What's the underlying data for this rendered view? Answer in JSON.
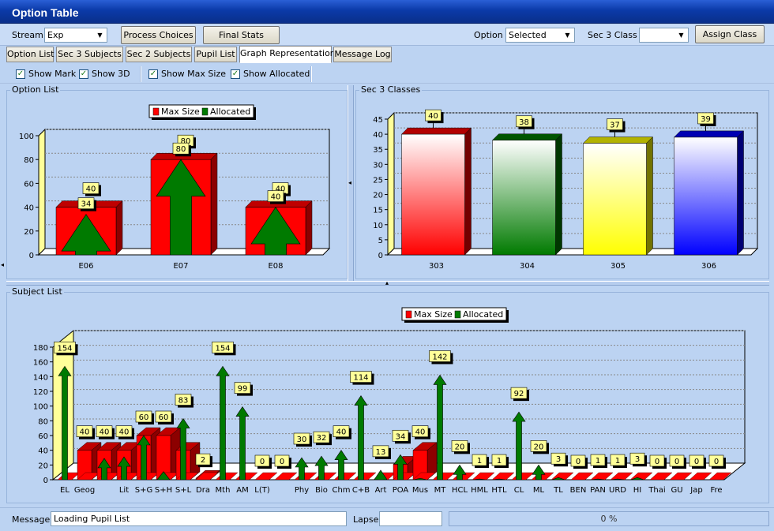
{
  "window": {
    "title": "Option Table"
  },
  "toolbar": {
    "stream_label": "Stream",
    "stream_value": "Exp",
    "process_choices": "Process Choices",
    "final_stats": "Final Stats",
    "option_label": "Option",
    "option_value": "Selected",
    "sec3class_label": "Sec 3 Class",
    "sec3class_value": "",
    "assign_class": "Assign Class"
  },
  "tabs": [
    {
      "label": "Option List"
    },
    {
      "label": "Sec 3 Subjects"
    },
    {
      "label": "Sec 2 Subjects"
    },
    {
      "label": "Pupil List"
    },
    {
      "label": "Graph Representation"
    },
    {
      "label": "Message Log"
    }
  ],
  "checkboxes": [
    {
      "label": "Show Mark",
      "checked": true
    },
    {
      "label": "Show 3D",
      "checked": true
    },
    {
      "label": "Show Max Size",
      "checked": true
    },
    {
      "label": "Show Allocated",
      "checked": true
    }
  ],
  "panels": {
    "option_list": "Option List",
    "sec3_classes": "Sec 3 Classes",
    "subject_list": "Subject List"
  },
  "legend": {
    "max_size": "Max Size",
    "allocated": "Allocated"
  },
  "colors": {
    "max_size": "#ff0000",
    "allocated": "#007a00",
    "label_bg": "#ffff99",
    "wall": "#ffff99"
  },
  "icons": {
    "check": "check-mark-icon",
    "dropdown": "chevron-down-icon",
    "split_left": "chevron-left-icon",
    "split_up": "chevron-up-icon"
  },
  "chart_data": [
    {
      "type": "bar",
      "categories": [
        "E06",
        "E07",
        "E08"
      ],
      "series": [
        {
          "name": "Max Size",
          "values": [
            40,
            80,
            40
          ]
        },
        {
          "name": "Allocated",
          "values": [
            34,
            80,
            40
          ]
        }
      ],
      "title": "",
      "xlabel": "",
      "ylabel": "",
      "ylim": [
        0,
        100
      ],
      "yticks": [
        0,
        20,
        40,
        60,
        80,
        100
      ],
      "grid": true,
      "legend_placement": "top"
    },
    {
      "type": "bar",
      "categories": [
        "303",
        "304",
        "305",
        "306"
      ],
      "values": [
        40,
        38,
        37,
        39
      ],
      "colors": [
        "#ff0000",
        "#007a00",
        "#ffff00",
        "#0000ff"
      ],
      "title": "",
      "ylim": [
        0,
        45
      ],
      "yticks": [
        0,
        5,
        10,
        15,
        20,
        25,
        30,
        35,
        40,
        45
      ],
      "grid": true
    },
    {
      "type": "bar",
      "categories": [
        "EL",
        "Geog",
        "",
        "Lit",
        "S+G",
        "S+H",
        "S+L",
        "Dra",
        "Mth",
        "AM",
        "L(T)",
        "",
        "Phy",
        "Bio",
        "Chm",
        "C+B",
        "Art",
        "POA",
        "Mus",
        "MT",
        "HCL",
        "HML",
        "HTL",
        "CL",
        "ML",
        "TL",
        "BEN",
        "PAN",
        "URD",
        "HI",
        "Thai",
        "GU",
        "Jap",
        "Fre"
      ],
      "series": [
        {
          "name": "Max Size",
          "values": [
            0,
            40,
            40,
            40,
            60,
            60,
            40,
            2,
            0,
            0,
            0,
            0,
            0,
            0,
            0,
            0,
            0,
            21,
            40,
            0,
            0,
            0,
            0,
            0,
            0,
            0,
            0,
            0,
            0,
            0,
            0,
            0,
            0,
            0
          ]
        },
        {
          "name": "Allocated",
          "values": [
            154,
            0,
            29,
            31,
            60,
            11,
            83,
            0,
            154,
            99,
            0,
            0,
            30,
            32,
            40,
            114,
            13,
            34,
            2,
            142,
            20,
            1,
            1,
            92,
            20,
            3,
            0,
            1,
            1,
            3,
            0,
            0,
            0,
            0
          ]
        }
      ],
      "title": "",
      "ylim": [
        0,
        180
      ],
      "yticks": [
        0,
        20,
        40,
        60,
        80,
        100,
        120,
        140,
        160,
        180
      ],
      "grid": true,
      "legend_placement": "top"
    }
  ],
  "status": {
    "message_label": "Message",
    "message_value": "Loading Pupil List",
    "lapse_label": "Lapse",
    "lapse_value": "",
    "progress_text": "0 %"
  }
}
